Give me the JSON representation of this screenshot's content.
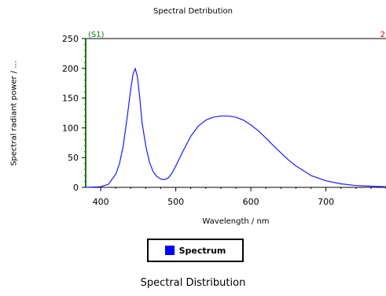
{
  "chart_data": {
    "type": "line",
    "title": "Spectral Detribution",
    "xlabel": "Wavelength / nm",
    "ylabel": "Spectral radiant power / ...",
    "xlim": [
      380,
      780
    ],
    "ylim": [
      0,
      250
    ],
    "x_ticks": [
      400,
      500,
      600,
      700
    ],
    "y_ticks": [
      0,
      50,
      100,
      150,
      200,
      250
    ],
    "corner_label_left": "(S1)",
    "corner_label_right": "2",
    "legend_position": "bottom",
    "grid": false,
    "series": [
      {
        "name": "Spectrum",
        "color": "#1a1aff",
        "x": [
          380,
          400,
          410,
          420,
          425,
          430,
          435,
          440,
          443,
          446,
          449,
          452,
          455,
          460,
          465,
          470,
          475,
          480,
          485,
          490,
          495,
          500,
          510,
          520,
          530,
          540,
          550,
          560,
          570,
          580,
          590,
          600,
          610,
          620,
          630,
          640,
          650,
          660,
          680,
          700,
          720,
          740,
          760,
          780
        ],
        "values": [
          0,
          1,
          5,
          22,
          40,
          70,
          115,
          165,
          190,
          200,
          185,
          150,
          110,
          70,
          42,
          26,
          18,
          14,
          13,
          16,
          24,
          36,
          62,
          86,
          103,
          113,
          118,
          120,
          120,
          118,
          113,
          105,
          95,
          83,
          70,
          58,
          46,
          36,
          20,
          11,
          6,
          3,
          2,
          1
        ]
      }
    ]
  },
  "legend": {
    "label": "Spectrum",
    "color": "#0000ff"
  },
  "footer": {
    "title": "Spectral Distribution"
  }
}
